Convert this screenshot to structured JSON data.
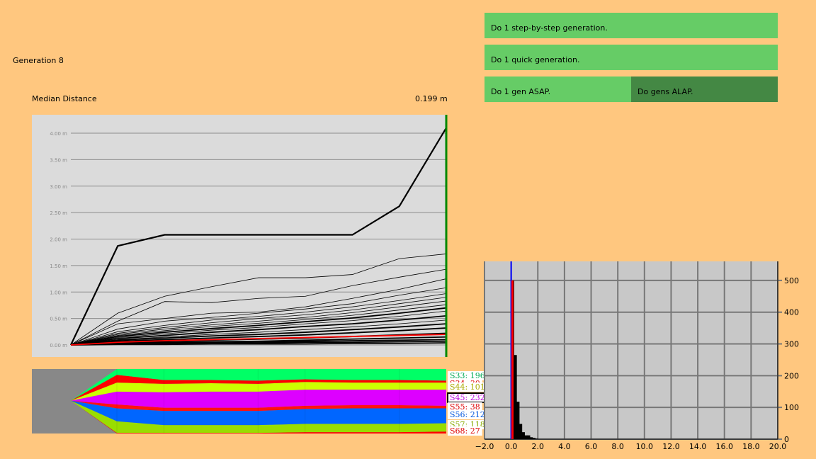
{
  "generation_label": "Generation 8",
  "median_label": "Median Distance",
  "median_value": "0.199 m",
  "buttons": {
    "step": "Do 1 step-by-step generation.",
    "quick": "Do 1 quick generation.",
    "asap": "Do 1 gen ASAP.",
    "alap": "Do gens ALAP."
  },
  "colors": {
    "background": "#FFC77F",
    "button": "#66CC66",
    "button_active": "#448844",
    "graph_bg": "#DBDBDB",
    "current_marker": "#008800",
    "median_line": "#FF0000",
    "histogram_bg": "#C8C8C8"
  },
  "chart_data": [
    {
      "type": "line",
      "title": "",
      "x": [
        0,
        1,
        2,
        3,
        4,
        5,
        6,
        7,
        8
      ],
      "ylim": [
        0,
        4.35
      ],
      "yticks": [
        "0.00 m",
        "0.50 m",
        "1.00 m",
        "1.50 m",
        "2.00 m",
        "2.50 m",
        "3.00 m",
        "3.50 m",
        "4.00 m"
      ],
      "series": [
        {
          "values": [
            0,
            1.87,
            2.08,
            2.08,
            2.08,
            2.08,
            2.08,
            2.62,
            4.1
          ],
          "bold": true
        },
        {
          "values": [
            0,
            0.6,
            0.92,
            1.1,
            1.27,
            1.27,
            1.33,
            1.63,
            1.72
          ]
        },
        {
          "values": [
            0,
            0.45,
            0.82,
            0.8,
            0.88,
            0.92,
            1.12,
            1.28,
            1.43
          ]
        },
        {
          "values": [
            0,
            0.4,
            0.5,
            0.6,
            0.62,
            0.72,
            0.88,
            1.05,
            1.25
          ]
        },
        {
          "values": [
            0,
            0.3,
            0.45,
            0.52,
            0.6,
            0.68,
            0.78,
            0.94,
            1.08
          ]
        },
        {
          "values": [
            0,
            0.25,
            0.37,
            0.47,
            0.54,
            0.62,
            0.72,
            0.84,
            0.97
          ]
        },
        {
          "values": [
            0,
            0.22,
            0.33,
            0.42,
            0.5,
            0.57,
            0.66,
            0.78,
            0.9
          ]
        },
        {
          "values": [
            0,
            0.2,
            0.3,
            0.38,
            0.45,
            0.52,
            0.61,
            0.72,
            0.83
          ]
        },
        {
          "values": [
            0,
            0.18,
            0.27,
            0.35,
            0.41,
            0.48,
            0.56,
            0.66,
            0.76
          ]
        },
        {
          "values": [
            0,
            0.16,
            0.24,
            0.31,
            0.37,
            0.44,
            0.51,
            0.6,
            0.7
          ],
          "bold": true
        },
        {
          "values": [
            0,
            0.14,
            0.21,
            0.28,
            0.33,
            0.4,
            0.46,
            0.54,
            0.64
          ]
        },
        {
          "values": [
            0,
            0.12,
            0.18,
            0.24,
            0.29,
            0.35,
            0.4,
            0.47,
            0.55
          ],
          "bold": true
        },
        {
          "values": [
            0,
            0.1,
            0.15,
            0.2,
            0.24,
            0.29,
            0.34,
            0.4,
            0.47
          ]
        },
        {
          "values": [
            0,
            0.09,
            0.13,
            0.17,
            0.2,
            0.24,
            0.29,
            0.34,
            0.4
          ],
          "bold": true
        },
        {
          "values": [
            0,
            0.07,
            0.1,
            0.13,
            0.16,
            0.19,
            0.23,
            0.27,
            0.32
          ],
          "bold": true
        },
        {
          "values": [
            0,
            0.05,
            0.07,
            0.09,
            0.11,
            0.13,
            0.16,
            0.19,
            0.22
          ],
          "bold": true
        },
        {
          "values": [
            0,
            0.04,
            0.05,
            0.06,
            0.07,
            0.09,
            0.11,
            0.13,
            0.15
          ],
          "bold": true
        },
        {
          "values": [
            0,
            0.03,
            0.04,
            0.05,
            0.06,
            0.07,
            0.08,
            0.09,
            0.1
          ],
          "bold": true
        },
        {
          "values": [
            0,
            0.02,
            0.03,
            0.03,
            0.04,
            0.05,
            0.05,
            0.06,
            0.07
          ],
          "bold": true
        },
        {
          "values": [
            0,
            0.01,
            0.01,
            0.02,
            0.02,
            0.02,
            0.03,
            0.03,
            0.04
          ],
          "bold": true
        },
        {
          "values": [
            0,
            0.05,
            0.08,
            0.1,
            0.12,
            0.14,
            0.16,
            0.18,
            0.2
          ],
          "color": "#FF0000",
          "bold": true
        }
      ]
    },
    {
      "type": "area",
      "title": "",
      "x": [
        0,
        1,
        2,
        3,
        4,
        5,
        6,
        7,
        8
      ],
      "series": [
        {
          "name": "S68",
          "color": "#FF0000",
          "values": [
            0,
            0.01,
            0.01,
            0.01,
            0.01,
            0.02,
            0.02,
            0.02,
            0.03
          ]
        },
        {
          "name": "S57",
          "color": "#99DD00",
          "values": [
            0,
            0.18,
            0.12,
            0.12,
            0.12,
            0.13,
            0.13,
            0.13,
            0.13
          ]
        },
        {
          "name": "S56",
          "color": "#0066FF",
          "values": [
            0,
            0.2,
            0.22,
            0.22,
            0.22,
            0.23,
            0.24,
            0.24,
            0.23
          ]
        },
        {
          "name": "S55",
          "color": "#FF1111",
          "values": [
            0,
            0.06,
            0.05,
            0.05,
            0.05,
            0.05,
            0.05,
            0.05,
            0.04
          ]
        },
        {
          "name": "S45",
          "color": "#DD00FF",
          "values": [
            0,
            0.2,
            0.24,
            0.25,
            0.25,
            0.25,
            0.24,
            0.24,
            0.25
          ]
        },
        {
          "name": "S44",
          "color": "#CCFF00",
          "values": [
            0,
            0.14,
            0.13,
            0.13,
            0.12,
            0.12,
            0.11,
            0.11,
            0.11
          ]
        },
        {
          "name": "S34",
          "color": "#FF0000",
          "values": [
            0,
            0.12,
            0.06,
            0.05,
            0.05,
            0.04,
            0.04,
            0.04,
            0.03
          ]
        },
        {
          "name": "S33",
          "color": "#00FF66",
          "values": [
            0,
            0.09,
            0.17,
            0.17,
            0.18,
            0.16,
            0.17,
            0.17,
            0.18
          ]
        }
      ],
      "labels": [
        {
          "text": "S33: 196",
          "color": "#00AA55"
        },
        {
          "text": "S34: 30",
          "color": "#DD0000"
        },
        {
          "text": "S44: 101",
          "color": "#AAAA00"
        },
        {
          "text": "S45: 232",
          "color": "#BB00DD",
          "selected": true
        },
        {
          "text": "S55: 38",
          "color": "#DD0000"
        },
        {
          "text": "S56: 212",
          "color": "#0055DD"
        },
        {
          "text": "S57: 118",
          "color": "#88AA00"
        },
        {
          "text": "S68: 27",
          "color": "#DD0000"
        }
      ]
    },
    {
      "type": "bar",
      "title": "",
      "xlim": [
        -2.0,
        20.0
      ],
      "ylim": [
        0,
        560
      ],
      "xticks": [
        "-2.0",
        "0.0",
        "2.0",
        "4.0",
        "6.0",
        "8.0",
        "10.0",
        "12.0",
        "14.0",
        "16.0",
        "18.0",
        "20.0"
      ],
      "yticks": [
        "0",
        "100",
        "200",
        "300",
        "400",
        "500"
      ],
      "bin_width": 0.2,
      "bins": [
        {
          "x": 0.0,
          "value": 500
        },
        {
          "x": 0.2,
          "value": 265
        },
        {
          "x": 0.4,
          "value": 118
        },
        {
          "x": 0.6,
          "value": 48
        },
        {
          "x": 0.8,
          "value": 22
        },
        {
          "x": 1.0,
          "value": 12
        },
        {
          "x": 1.2,
          "value": 12
        },
        {
          "x": 1.4,
          "value": 6
        },
        {
          "x": 1.6,
          "value": 4
        },
        {
          "x": 1.8,
          "value": 2
        },
        {
          "x": 2.0,
          "value": 1
        },
        {
          "x": 2.2,
          "value": 1
        },
        {
          "x": 2.6,
          "value": 1
        }
      ],
      "marker_blue_x": 0.0,
      "marker_red_x": 0.1
    }
  ]
}
